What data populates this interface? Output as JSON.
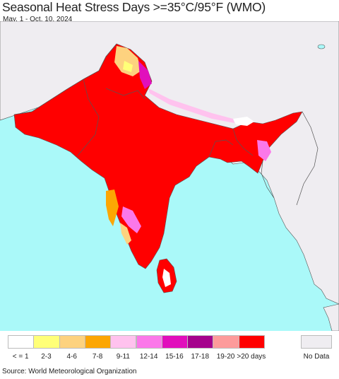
{
  "title": "Seasonal Heat Stress Days >=35°C/95°F (WMO)",
  "subtitle": "May. 1 - Oct. 10, 2024",
  "source": "Source: World Meteorological Organization",
  "colors": {
    "ocean": "#aaf9f9",
    "nodata_land": "#efedf1",
    "main": "#ff0000",
    "border": "#555555"
  },
  "legend": [
    {
      "label": "< = 1",
      "color": "#ffffff"
    },
    {
      "label": "2-3",
      "color": "#ffff78"
    },
    {
      "label": "4-6",
      "color": "#fdd27f"
    },
    {
      "label": "7-8",
      "color": "#fca603"
    },
    {
      "label": "9-11",
      "color": "#ffc2ee"
    },
    {
      "label": "12-14",
      "color": "#fb78e9"
    },
    {
      "label": "15-16",
      "color": "#e10fbc"
    },
    {
      "label": "17-18",
      "color": "#a5028c"
    },
    {
      "label": "19-20",
      "color": "#fd9b9b"
    },
    {
      "label": ">20 days",
      "color": "#ff0000"
    }
  ],
  "nodata": {
    "label": "No Data",
    "color": "#efedf1"
  }
}
